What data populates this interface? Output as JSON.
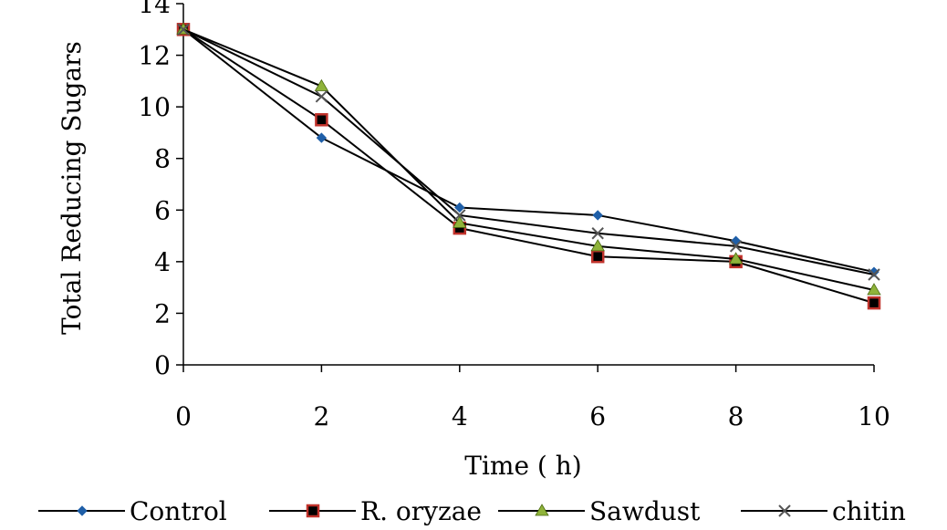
{
  "chart_data": {
    "type": "line",
    "title": "",
    "xlabel": "Time ( h)",
    "ylabel": "Total Reducing Sugars",
    "x": [
      0,
      2,
      4,
      6,
      8,
      10
    ],
    "xticks": [
      "0",
      "2",
      "4",
      "6",
      "8",
      "10"
    ],
    "yticks": [
      "0",
      "2",
      "4",
      "6",
      "8",
      "10",
      "12",
      "14"
    ],
    "xlim": [
      0,
      10
    ],
    "ylim": [
      0,
      14
    ],
    "grid": false,
    "legend_position": "bottom",
    "series": [
      {
        "name": "Control",
        "values": [
          13.0,
          8.8,
          6.1,
          5.8,
          4.8,
          3.6
        ],
        "color": "#1f5fa8",
        "marker": "diamond"
      },
      {
        "name": "R. oryzae",
        "values": [
          13.0,
          9.5,
          5.3,
          4.2,
          4.0,
          2.4
        ],
        "color": "#c0322b",
        "marker": "square"
      },
      {
        "name": "Sawdust",
        "values": [
          13.0,
          10.8,
          5.5,
          4.6,
          4.1,
          2.9
        ],
        "color": "#8fb33a",
        "marker": "triangle"
      },
      {
        "name": "chitin",
        "values": [
          13.0,
          10.4,
          5.8,
          5.1,
          4.6,
          3.5
        ],
        "color": "#555555",
        "marker": "x"
      }
    ]
  }
}
